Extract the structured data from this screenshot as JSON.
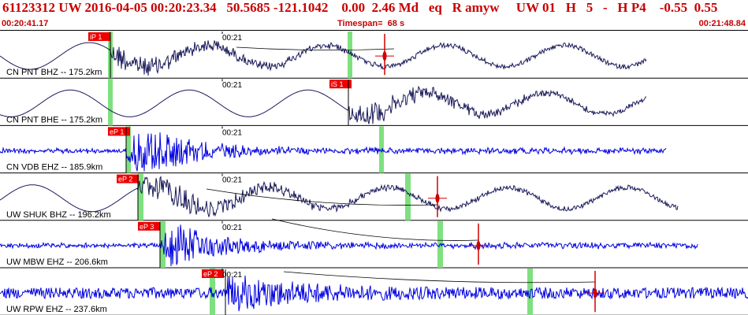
{
  "header": {
    "title": "61123312 UW 2016-04-05 00:20:23.34   50.5685 -121.1042    0.00  2.46 Md   eq   R amyw     UW 01   H   5   -   H P4    -0.55  0.55",
    "start_time": "00:20:41.17",
    "timespan": "Timespan=  68 s",
    "end_time": "00:21:48.84"
  },
  "colors": {
    "header_text": "#c80000",
    "trace_dark": "#1a1a5a",
    "trace_blue": "#0000e0",
    "pick_box": "#ee0000",
    "window_green": "#7fe07f"
  },
  "traces": [
    {
      "label": "CN PNT BHZ -- 175.2km",
      "color": "dark",
      "style": "long",
      "pick": "iP 1",
      "tick": "00:21"
    },
    {
      "label": "CN PNT BHE -- 175.2km",
      "color": "dark",
      "style": "long",
      "pick": "iS 1",
      "tick": "00:21"
    },
    {
      "label": "CN VDB EHZ -- 185.9km",
      "color": "blue",
      "style": "burst",
      "pick": "eP 1",
      "tick": "00:21"
    },
    {
      "label": "UW SHUK BHZ -- 196.2km",
      "color": "dark",
      "style": "long",
      "pick": "eP 2",
      "tick": "00:21"
    },
    {
      "label": "UW MBW EHZ -- 206.6km",
      "color": "blue",
      "style": "burst",
      "pick": "eP 3",
      "tick": "00:21"
    },
    {
      "label": "UW RPW EHZ -- 237.6km",
      "color": "blue",
      "style": "noisy",
      "pick": "eP 2",
      "tick": "00:21"
    }
  ]
}
